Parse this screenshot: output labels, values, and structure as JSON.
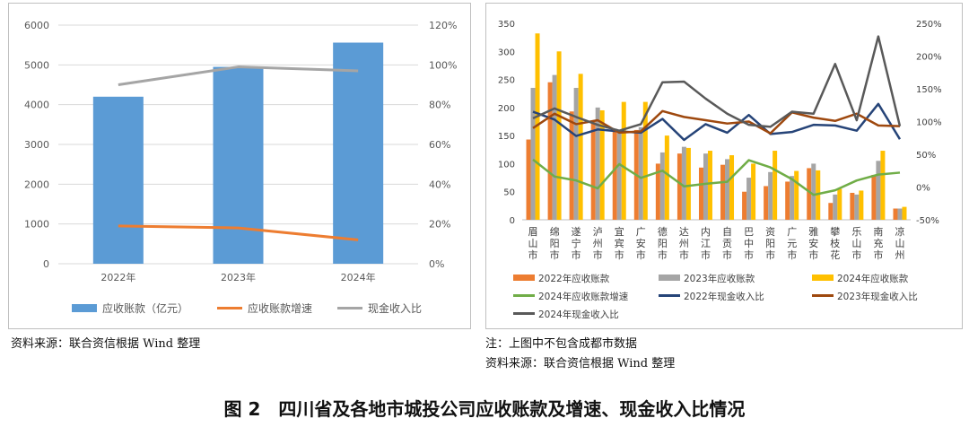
{
  "figure_title": "图 2　四川省及各地市城投公司应收账款及增速、现金收入比情况",
  "left_source": "资料来源：联合资信根据 Wind 整理",
  "right_note": "注：上图中不包含成都市数据",
  "right_source": "资料来源：联合资信根据 Wind 整理",
  "colors": {
    "blue_bar": "#5b9bd5",
    "orange": "#ed7d31",
    "gray": "#a5a5a5",
    "gold": "#ffc000",
    "green": "#70ad47",
    "navy": "#264478",
    "brown": "#9e480e",
    "dark": "#595959"
  },
  "chart_data": [
    {
      "type": "bar",
      "categories": [
        "2022年",
        "2023年",
        "2024年"
      ],
      "series": [
        {
          "name": "应收账款（亿元）",
          "type": "bar",
          "axis": "left",
          "values": [
            4200,
            4950,
            5560
          ]
        },
        {
          "name": "应收账款增速",
          "type": "line",
          "axis": "right",
          "values": [
            19,
            18,
            12
          ]
        },
        {
          "name": "现金收入比",
          "type": "line",
          "axis": "right",
          "values": [
            90,
            99,
            97
          ]
        }
      ],
      "yleft_ticks": [
        "0",
        "1000",
        "2000",
        "3000",
        "4000",
        "5000",
        "6000"
      ],
      "yright_ticks": [
        "0%",
        "20%",
        "40%",
        "60%",
        "80%",
        "100%",
        "120%"
      ],
      "ylim_left": [
        0,
        6000
      ],
      "ylim_right": [
        0,
        120
      ],
      "grid": true,
      "legend": "bottom"
    },
    {
      "type": "bar",
      "categories": [
        "眉山市",
        "绵阳市",
        "遂宁市",
        "泸州市",
        "宜宾市",
        "广安市",
        "德阳市",
        "达州市",
        "内江市",
        "自贡市",
        "巴中市",
        "资阳市",
        "广元市",
        "雅安市",
        "攀枝花",
        "乐山市",
        "南充市",
        "凉山州"
      ],
      "series": [
        {
          "name": "2022年应收账款",
          "type": "bar",
          "axis": "left",
          "values": [
            143,
            245,
            193,
            175,
            162,
            160,
            100,
            118,
            93,
            98,
            50,
            60,
            68,
            92,
            30,
            48,
            80,
            20
          ]
        },
        {
          "name": "2023年应收账款",
          "type": "bar",
          "axis": "left",
          "values": [
            235,
            258,
            235,
            200,
            160,
            165,
            120,
            130,
            118,
            108,
            75,
            85,
            78,
            100,
            45,
            45,
            105,
            20
          ]
        },
        {
          "name": "2024年应收账款",
          "type": "bar",
          "axis": "left",
          "values": [
            332,
            300,
            260,
            195,
            210,
            210,
            150,
            128,
            123,
            115,
            100,
            123,
            87,
            88,
            55,
            52,
            123,
            23
          ]
        },
        {
          "name": "2024年应收账款增速",
          "type": "line",
          "axis": "right",
          "values": [
            42,
            16,
            10,
            -2,
            35,
            14,
            25,
            1,
            5,
            8,
            41,
            30,
            12,
            -12,
            -5,
            10,
            19,
            22
          ]
        },
        {
          "name": "2022年现金收入比",
          "type": "line",
          "axis": "right",
          "values": [
            115,
            103,
            78,
            88,
            85,
            83,
            104,
            72,
            96,
            83,
            110,
            81,
            84,
            95,
            94,
            86,
            127,
            73
          ]
        },
        {
          "name": "2023年现金收入比",
          "type": "line",
          "axis": "right",
          "values": [
            90,
            112,
            96,
            102,
            83,
            85,
            116,
            107,
            102,
            97,
            100,
            82,
            114,
            106,
            101,
            112,
            94,
            93
          ]
        },
        {
          "name": "2024年现金收入比",
          "type": "line",
          "axis": "right",
          "values": [
            105,
            120,
            107,
            95,
            86,
            96,
            160,
            161,
            135,
            112,
            95,
            92,
            115,
            112,
            188,
            102,
            230,
            93
          ]
        }
      ],
      "yleft_ticks": [
        "0",
        "50",
        "100",
        "150",
        "200",
        "250",
        "300",
        "350"
      ],
      "yright_ticks": [
        "-50%",
        "0%",
        "50%",
        "100%",
        "150%",
        "200%",
        "250%"
      ],
      "ylim_left": [
        0,
        350
      ],
      "ylim_right": [
        -50,
        250
      ],
      "grid": false,
      "legend": "bottom"
    }
  ]
}
